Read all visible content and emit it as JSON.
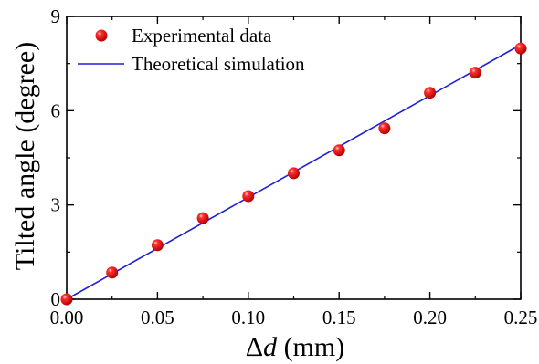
{
  "chart_data": {
    "type": "scatter",
    "xlabel_prefix": "Δ",
    "xlabel_var": "d",
    "xlabel_unit": " (mm)",
    "ylabel": "Tilted angle (degree)",
    "xlim": [
      0.0,
      0.25
    ],
    "ylim": [
      0,
      9
    ],
    "xticks": [
      "0.00",
      "0.05",
      "0.10",
      "0.15",
      "0.20",
      "0.25"
    ],
    "xtick_values": [
      0.0,
      0.05,
      0.1,
      0.15,
      0.2,
      0.25
    ],
    "yticks": [
      "0",
      "3",
      "6",
      "9"
    ],
    "ytick_values": [
      0,
      3,
      6,
      9
    ],
    "grid": false,
    "legend_position": "top-left",
    "series": [
      {
        "name": "Experimental data",
        "kind": "scatter",
        "color": "#e00000",
        "x": [
          0.0,
          0.025,
          0.05,
          0.075,
          0.1,
          0.125,
          0.15,
          0.175,
          0.2,
          0.225,
          0.25
        ],
        "y": [
          0.0,
          0.85,
          1.72,
          2.58,
          3.28,
          4.01,
          4.74,
          5.44,
          6.57,
          7.21,
          7.98
        ]
      },
      {
        "name": "Theoretical simulation",
        "kind": "line",
        "color": "#1f1fd6",
        "x": [
          0.0,
          0.25
        ],
        "y": [
          0.0,
          8.1
        ]
      }
    ]
  }
}
